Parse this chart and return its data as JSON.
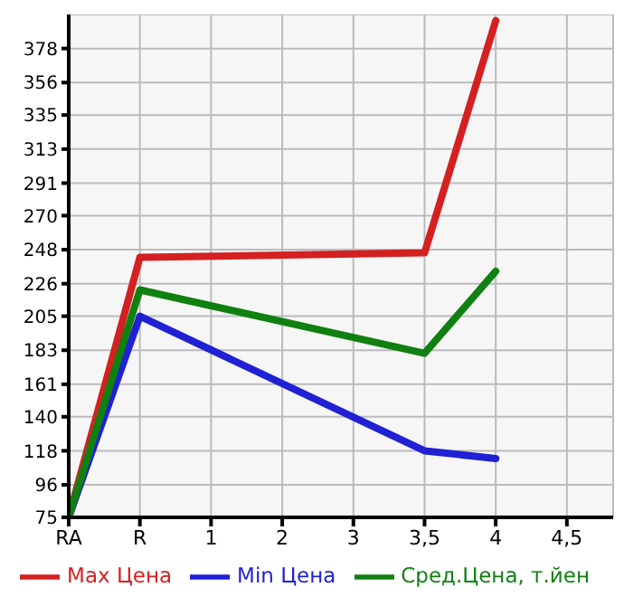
{
  "chart_data": {
    "type": "line",
    "categories": [
      "RA",
      "R",
      "1",
      "2",
      "3",
      "3,5",
      "4",
      "4,5"
    ],
    "series": [
      {
        "name": "Max Цена",
        "color": "#d42020",
        "values": [
          75,
          243,
          null,
          null,
          null,
          246,
          396,
          null
        ]
      },
      {
        "name": "Min Цена",
        "color": "#2020d4",
        "values": [
          75,
          205,
          null,
          null,
          null,
          118,
          113,
          null
        ]
      },
      {
        "name": "Сред.Цена, т.йен",
        "color": "#108010",
        "values": [
          75,
          222,
          null,
          null,
          null,
          181,
          234,
          null
        ]
      }
    ],
    "ylim": [
      75,
      400
    ],
    "yticks": [
      75,
      96,
      118,
      140,
      161,
      183,
      205,
      226,
      248,
      270,
      291,
      313,
      335,
      356,
      378
    ],
    "grid": true,
    "legend": "bottom",
    "marker": "none",
    "line_style": "solid"
  }
}
